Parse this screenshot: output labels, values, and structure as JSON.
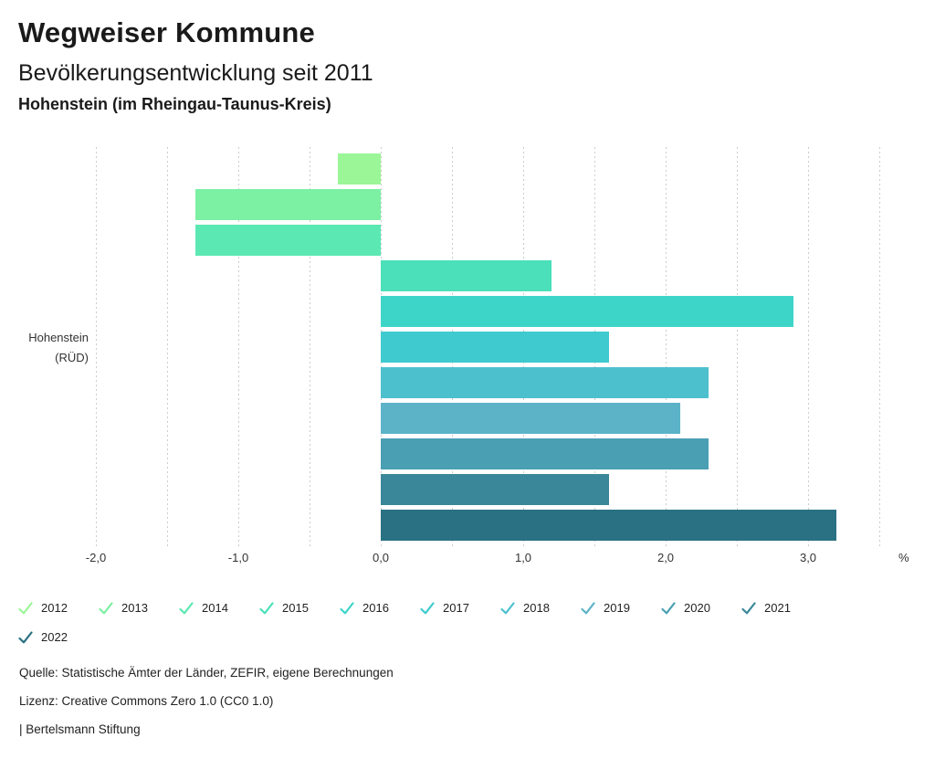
{
  "header": {
    "title": "Wegweiser Kommune",
    "subtitle": "Bevölkerungsentwicklung seit 2011",
    "location": "Hohenstein (im Rheingau-Taunus-Kreis)"
  },
  "chart_data": {
    "type": "bar",
    "orientation": "horizontal",
    "title": "Bevölkerungsentwicklung seit 2011",
    "row_label_lines": [
      "Hohenstein",
      "(RÜD)"
    ],
    "unit_label": "%",
    "xlim": [
      -2.0,
      3.5
    ],
    "grid_step": 0.5,
    "grid": true,
    "legend_position": "bottom",
    "x_ticks": [
      -2,
      -1,
      0,
      1,
      2,
      3
    ],
    "x_tick_labels": [
      "-2,0",
      "-1,0",
      "0,0",
      "1,0",
      "2,0",
      "3,0"
    ],
    "series": [
      {
        "name": "2012",
        "value": -0.3,
        "color": "#9bf697"
      },
      {
        "name": "2013",
        "value": -1.3,
        "color": "#7cf0a3"
      },
      {
        "name": "2014",
        "value": -1.3,
        "color": "#5ce8b3"
      },
      {
        "name": "2015",
        "value": 1.2,
        "color": "#4be0ba"
      },
      {
        "name": "2016",
        "value": 2.9,
        "color": "#3ed5c9"
      },
      {
        "name": "2017",
        "value": 1.6,
        "color": "#3fcacf"
      },
      {
        "name": "2018",
        "value": 2.3,
        "color": "#4dc0ce"
      },
      {
        "name": "2019",
        "value": 2.1,
        "color": "#5cb3c8"
      },
      {
        "name": "2020",
        "value": 2.3,
        "color": "#4a9fb3"
      },
      {
        "name": "2021",
        "value": 1.6,
        "color": "#3a8799"
      },
      {
        "name": "2022",
        "value": 3.2,
        "color": "#2a7183"
      }
    ]
  },
  "footer": {
    "source": "Quelle: Statistische Ämter der Länder, ZEFIR, eigene Berechnungen",
    "license": "Lizenz: Creative Commons Zero 1.0 (CC0 1.0)",
    "attribution": "| Bertelsmann Stiftung"
  }
}
